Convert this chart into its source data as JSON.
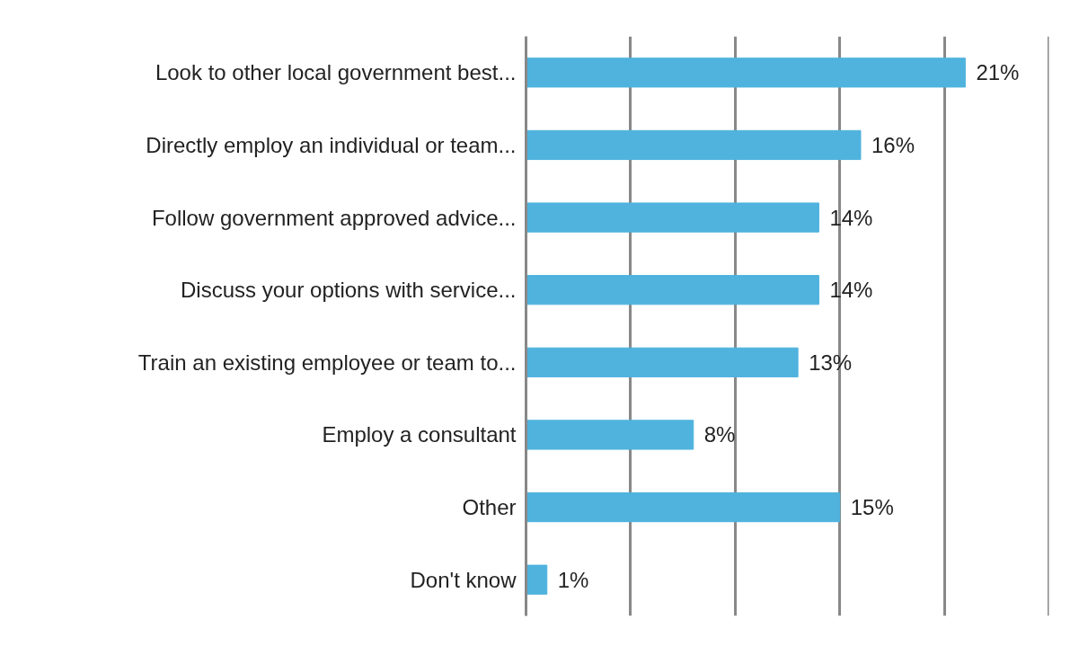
{
  "chart_data": {
    "type": "bar",
    "orientation": "horizontal",
    "categories": [
      "Look to other local government best...",
      "Directly employ an individual or team...",
      "Follow government approved advice...",
      "Discuss your options with service...",
      "Train an existing employee or team to...",
      "Employ a consultant",
      "Other",
      "Don't know"
    ],
    "values": [
      21,
      16,
      14,
      14,
      13,
      8,
      15,
      1
    ],
    "value_labels": [
      "21%",
      "16%",
      "14%",
      "14%",
      "13%",
      "8%",
      "15%",
      "1%"
    ],
    "color": "#4fb3de",
    "xlim": [
      0,
      25
    ],
    "xticks": [
      {
        "value": 0,
        "label": null
      },
      {
        "value": 5,
        "label": null
      },
      {
        "value": 10,
        "label": null
      },
      {
        "value": 15,
        "label": null
      },
      {
        "value": 20,
        "label": null
      },
      {
        "value": 25,
        "label": null
      }
    ],
    "tick_labels": "y",
    "grid": "x"
  }
}
